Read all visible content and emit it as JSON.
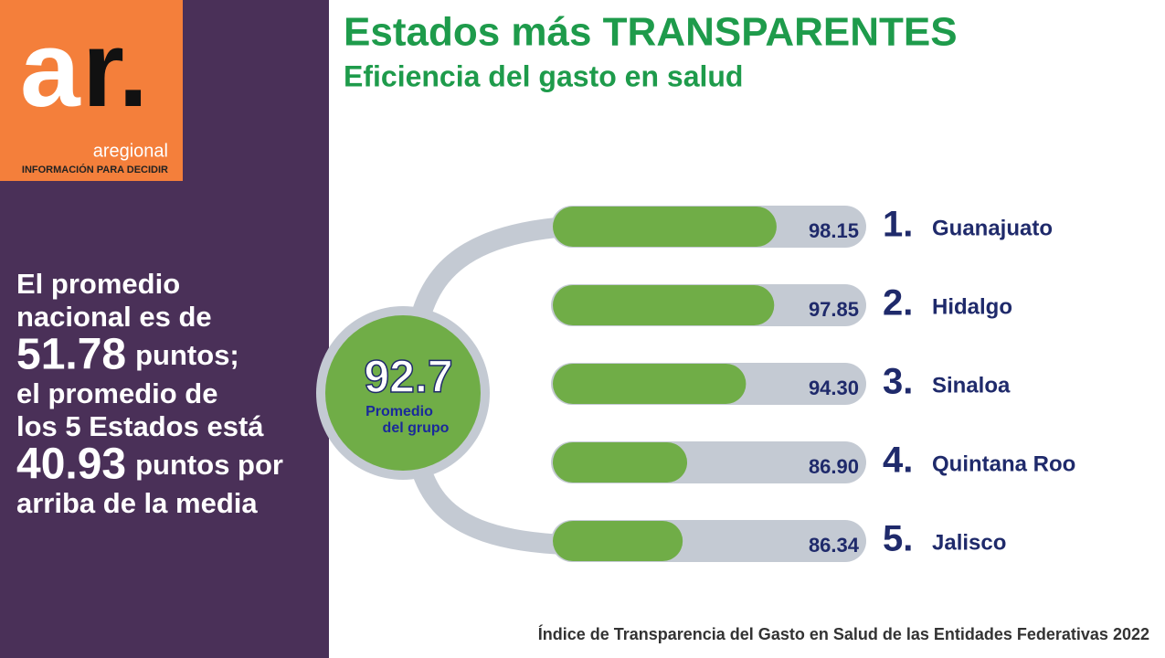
{
  "logo": {
    "letters": [
      "a",
      "r."
    ],
    "name": "aregional",
    "tagline": "INFORMACIÓN PARA DECIDIR"
  },
  "sidebar": [
    [
      "El promedio"
    ],
    [
      "nacional es de"
    ],
    [
      "51.78",
      "puntos;"
    ],
    [
      "el promedio de"
    ],
    [
      "los 5 Estados está"
    ],
    [
      "40.93",
      "puntos por"
    ],
    [
      "arriba de la media"
    ]
  ],
  "chart_data": {
    "type": "bar",
    "title": "Estados más TRANSPARENTES",
    "subtitle": "Eficiencia del gasto en salud",
    "ranks": [
      "1.",
      "2.",
      "3.",
      "4.",
      "5."
    ],
    "categories": [
      "Guanajuato",
      "Hidalgo",
      "Sinaloa",
      "Quintana Roo",
      "Jalisco"
    ],
    "values": [
      98.15,
      97.85,
      94.3,
      86.9,
      86.34
    ],
    "value_labels": [
      "98.15",
      "97.85",
      "94.30",
      "86.90",
      "86.34"
    ],
    "color": "#70ad47",
    "xlim": [
      70,
      100
    ],
    "center": {
      "value": 92.7,
      "label": [
        "Promedio",
        "del grupo"
      ]
    },
    "source": "Índice de Transparencia del Gasto en Salud de las Entidades Federativas 2022"
  }
}
